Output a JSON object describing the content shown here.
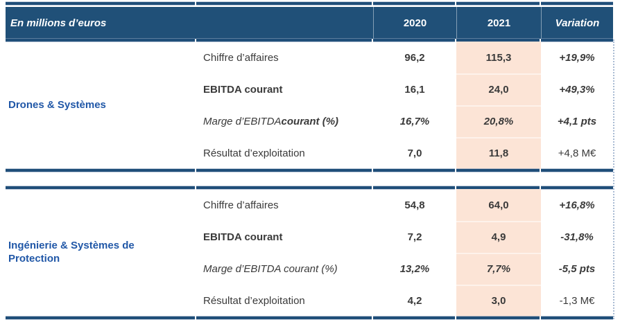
{
  "table": {
    "unit_label": "En millions d’euros",
    "columns": {
      "y2020": "2020",
      "y2021": "2021",
      "variation": "Variation"
    },
    "sections": [
      {
        "name": "Drones & Systèmes",
        "rows": [
          {
            "metric": "Chiffre d’affaires",
            "v2020": "96,2",
            "v2021": "115,3",
            "variation": "+19,9%"
          },
          {
            "metric": "EBITDA courant",
            "v2020": "16,1",
            "v2021": "24,0",
            "variation": "+49,3%"
          },
          {
            "metric": "Marge d’EBITDA ",
            "metric_bold": "courant (%)",
            "v2020": "16,7%",
            "v2021": "20,8%",
            "variation": "+4,1 pts"
          },
          {
            "metric": "Résultat d’exploitation",
            "v2020": "7,0",
            "v2021": "11,8",
            "variation": "+4,8 M€"
          }
        ]
      },
      {
        "name": "Ingénierie & Systèmes de Protection",
        "rows": [
          {
            "metric": "Chiffre d’affaires",
            "v2020": "54,8",
            "v2021": "64,0",
            "variation": "+16,8%"
          },
          {
            "metric": "EBITDA courant",
            "v2020": "7,2",
            "v2021": "4,9",
            "variation": "-31,8%"
          },
          {
            "metric": "Marge d’EBITDA courant (%)",
            "v2020": "13,2%",
            "v2021": "7,7%",
            "variation": "-5,5 pts"
          },
          {
            "metric": "Résultat d’exploitation",
            "v2020": "4,2",
            "v2021": "3,0",
            "variation": "-1,3 M€"
          }
        ]
      }
    ]
  },
  "colors": {
    "header_bg": "#205078",
    "rule_navy": "#1F4E79",
    "highlight_2021_bg": "#FCE4D6",
    "section_label_blue": "#2057A7",
    "body_text": "#3A3A3A",
    "guide_dotted": "#A9BBD3"
  }
}
